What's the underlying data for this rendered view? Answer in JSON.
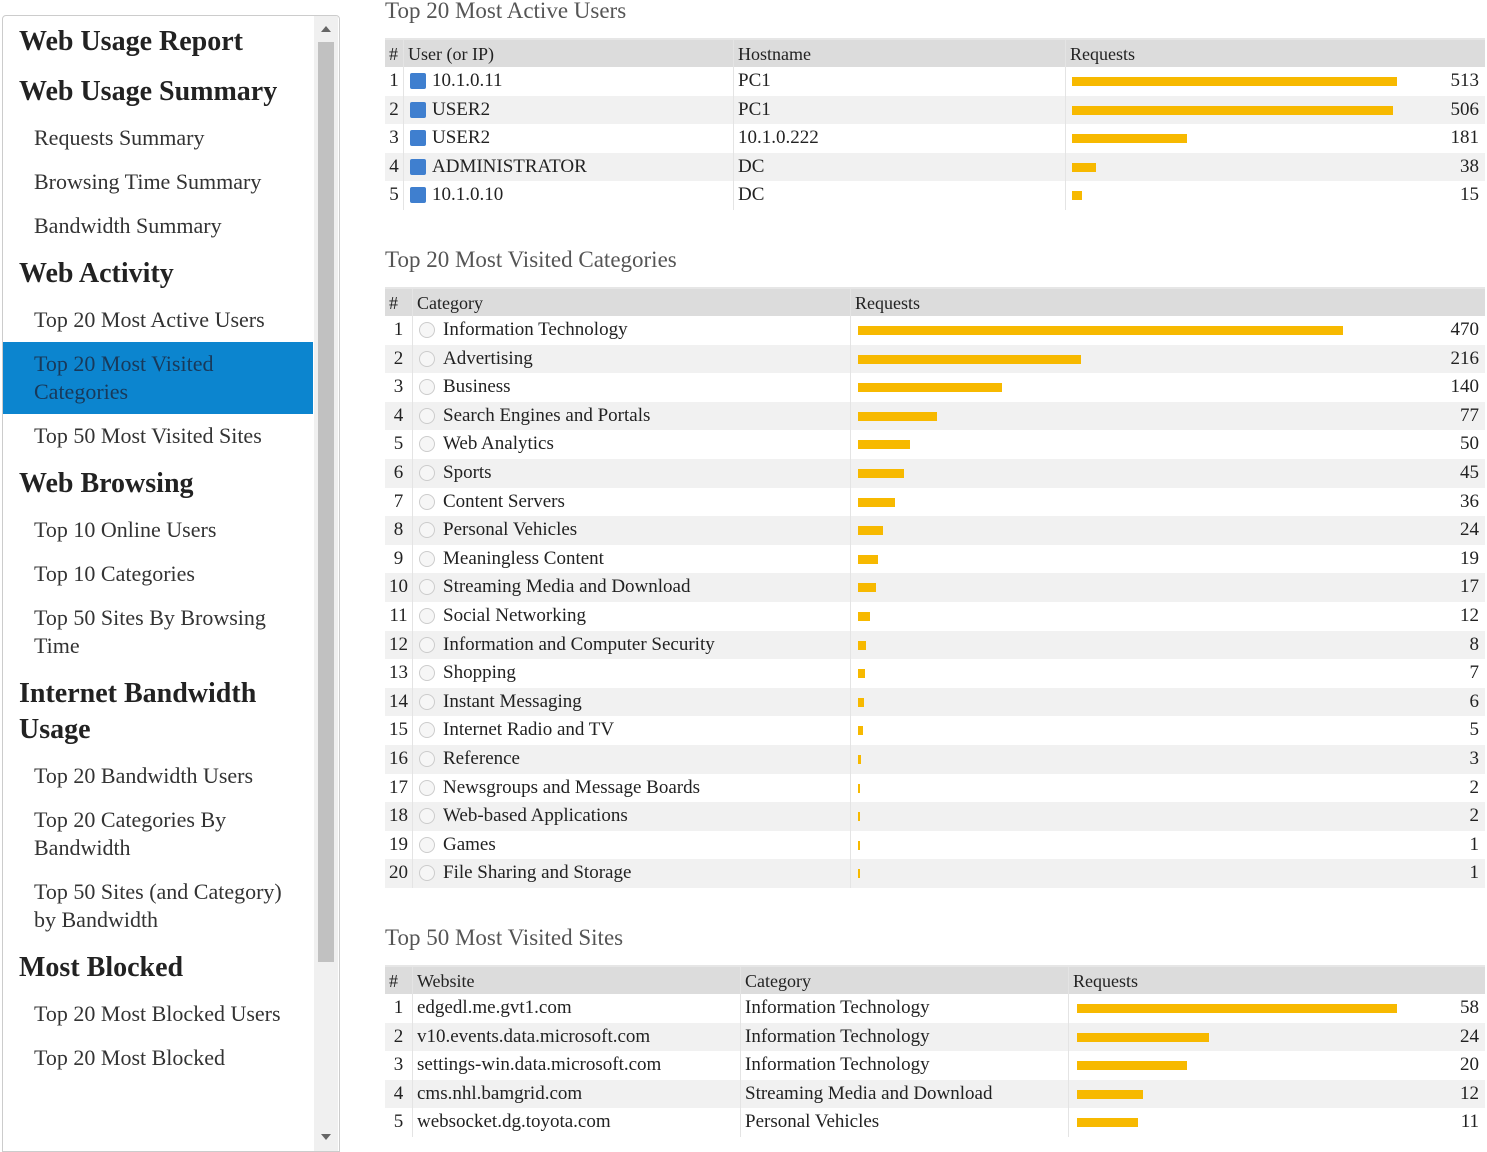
{
  "sidebar": {
    "title": "Web Usage Report",
    "sections": [
      {
        "heading": "Web Usage Summary",
        "items": [
          {
            "label": "Requests Summary"
          },
          {
            "label": "Browsing Time Summary"
          },
          {
            "label": "Bandwidth Summary"
          }
        ]
      },
      {
        "heading": "Web Activity",
        "items": [
          {
            "label": "Top 20 Most Active Users"
          },
          {
            "label": "Top 20 Most Visited Categories",
            "active": true
          },
          {
            "label": "Top 50 Most Visited Sites"
          }
        ]
      },
      {
        "heading": "Web Browsing",
        "items": [
          {
            "label": "Top 10 Online Users"
          },
          {
            "label": "Top 10 Categories"
          },
          {
            "label": "Top 50 Sites By Browsing Time"
          }
        ]
      },
      {
        "heading": "Internet Bandwidth Usage",
        "items": [
          {
            "label": "Top 20 Bandwidth Users"
          },
          {
            "label": "Top 20 Categories By Bandwidth"
          },
          {
            "label": "Top 50 Sites (and Category) by Bandwidth"
          }
        ]
      },
      {
        "heading": "Most Blocked",
        "items": [
          {
            "label": "Top 20 Most Blocked Users"
          },
          {
            "label": "Top 20 Most Blocked"
          }
        ]
      }
    ]
  },
  "users": {
    "title": "Top 20 Most Active Users",
    "columns": [
      "#",
      "User (or IP)",
      "Hostname",
      "Requests"
    ],
    "rows": [
      [
        1,
        "10.1.0.11",
        "PC1",
        513
      ],
      [
        2,
        "USER2",
        "PC1",
        506
      ],
      [
        3,
        "USER2",
        "10.1.0.222",
        181
      ],
      [
        4,
        "ADMINISTRATOR",
        "DC",
        38
      ],
      [
        5,
        "10.1.0.10",
        "DC",
        15
      ]
    ]
  },
  "categories": {
    "title": "Top 20 Most Visited Categories",
    "columns": [
      "#",
      "Category",
      "Requests"
    ],
    "rows": [
      [
        1,
        "Information Technology",
        470
      ],
      [
        2,
        "Advertising",
        216
      ],
      [
        3,
        "Business",
        140
      ],
      [
        4,
        "Search Engines and Portals",
        77
      ],
      [
        5,
        "Web Analytics",
        50
      ],
      [
        6,
        "Sports",
        45
      ],
      [
        7,
        "Content Servers",
        36
      ],
      [
        8,
        "Personal Vehicles",
        24
      ],
      [
        9,
        "Meaningless Content",
        19
      ],
      [
        10,
        "Streaming Media and Download",
        17
      ],
      [
        11,
        "Social Networking",
        12
      ],
      [
        12,
        "Information and Computer Security",
        8
      ],
      [
        13,
        "Shopping",
        7
      ],
      [
        14,
        "Instant Messaging",
        6
      ],
      [
        15,
        "Internet Radio and TV",
        5
      ],
      [
        16,
        "Reference",
        3
      ],
      [
        17,
        "Newsgroups and Message Boards",
        2
      ],
      [
        18,
        "Web-based Applications",
        2
      ],
      [
        19,
        "Games",
        1
      ],
      [
        20,
        "File Sharing and Storage",
        1
      ]
    ]
  },
  "sites": {
    "title": "Top 50 Most Visited Sites",
    "columns": [
      "#",
      "Website",
      "Category",
      "Requests"
    ],
    "rows": [
      [
        1,
        "edgedl.me.gvt1.com",
        "Information Technology",
        58
      ],
      [
        2,
        "v10.events.data.microsoft.com",
        "Information Technology",
        24
      ],
      [
        3,
        "settings-win.data.microsoft.com",
        "Information Technology",
        20
      ],
      [
        4,
        "cms.nhl.bamgrid.com",
        "Streaming Media and Download",
        12
      ],
      [
        5,
        "websocket.dg.toyota.com",
        "Personal Vehicles",
        11
      ]
    ]
  }
}
